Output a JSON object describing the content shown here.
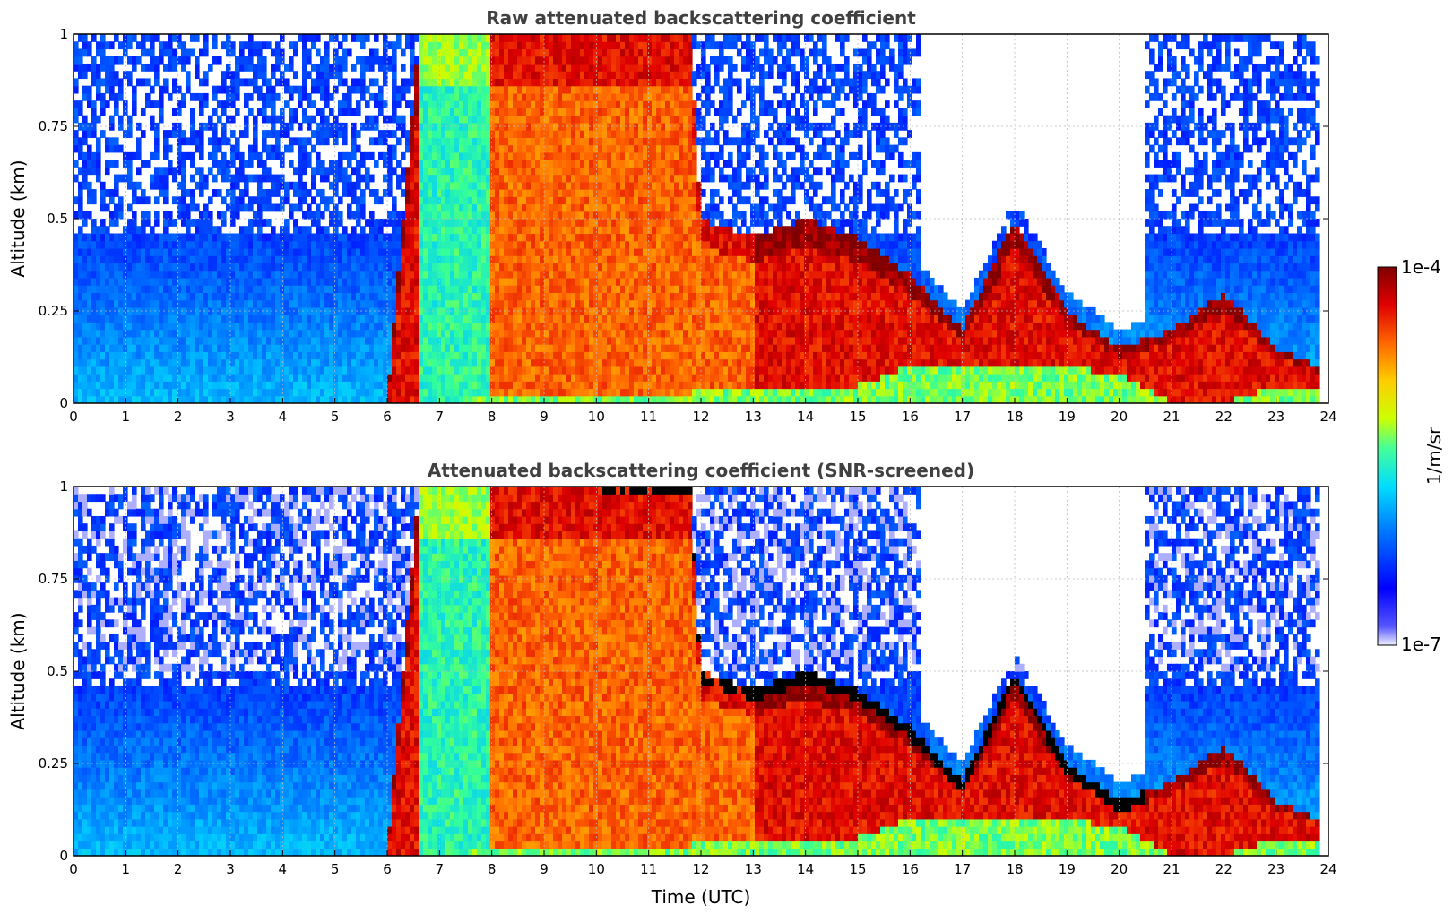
{
  "chart_data": [
    {
      "type": "heatmap",
      "title": "Raw attenuated backscattering coefficient",
      "xlabel": "",
      "ylabel": "Altitude (km)",
      "xlim": [
        0,
        24
      ],
      "ylim": [
        0,
        1
      ],
      "xticks": [
        "0",
        "1",
        "2",
        "3",
        "4",
        "5",
        "6",
        "7",
        "8",
        "9",
        "10",
        "11",
        "12",
        "13",
        "14",
        "15",
        "16",
        "17",
        "18",
        "19",
        "20",
        "21",
        "22",
        "23",
        "24"
      ],
      "yticks": [
        "0",
        "0.25",
        "0.5",
        "0.75",
        "1"
      ],
      "grid": true,
      "screened": false,
      "time_hours": [
        0,
        1,
        2,
        3,
        4,
        5,
        6,
        6.6,
        7,
        8,
        9,
        10,
        11,
        11.8,
        12,
        13,
        14,
        15,
        16,
        17,
        18,
        19,
        20,
        21,
        22,
        23,
        23.8
      ],
      "cloud_top_km": [
        0,
        0,
        0,
        0,
        0,
        0,
        0,
        1,
        1,
        1,
        1,
        1,
        1,
        1,
        0.5,
        0.45,
        0.5,
        0.45,
        0.35,
        0.2,
        0.5,
        0.25,
        0.15,
        0.2,
        0.3,
        0.15,
        0.1
      ],
      "cloud_base_km": [
        0,
        0,
        0,
        0,
        0,
        0,
        0,
        0,
        0,
        0.02,
        0.02,
        0.02,
        0.02,
        0.02,
        0.05,
        0.05,
        0.05,
        0.05,
        0.1,
        0.1,
        0.1,
        0.1,
        0.08,
        0,
        0,
        0.05,
        0.05
      ]
    },
    {
      "type": "heatmap",
      "title": "Attenuated backscattering coefficient (SNR-screened)",
      "xlabel": "Time (UTC)",
      "ylabel": "Altitude (km)",
      "xlim": [
        0,
        24
      ],
      "ylim": [
        0,
        1
      ],
      "xticks": [
        "0",
        "1",
        "2",
        "3",
        "4",
        "5",
        "6",
        "7",
        "8",
        "9",
        "10",
        "11",
        "12",
        "13",
        "14",
        "15",
        "16",
        "17",
        "18",
        "19",
        "20",
        "21",
        "22",
        "23",
        "24"
      ],
      "yticks": [
        "0",
        "0.25",
        "0.5",
        "0.75",
        "1"
      ],
      "grid": true,
      "screened": true,
      "time_hours": [
        0,
        1,
        2,
        3,
        4,
        5,
        6,
        6.6,
        7,
        8,
        9,
        10,
        11,
        11.8,
        12,
        13,
        14,
        15,
        16,
        17,
        18,
        19,
        20,
        21,
        22,
        23,
        23.8
      ],
      "cloud_top_km": [
        0,
        0,
        0,
        0,
        0,
        0,
        0,
        1,
        1,
        1,
        1,
        1,
        1,
        1,
        0.5,
        0.45,
        0.5,
        0.45,
        0.35,
        0.2,
        0.5,
        0.25,
        0.15,
        0.2,
        0.3,
        0.15,
        0.1
      ],
      "cloud_base_km": [
        0,
        0,
        0,
        0,
        0,
        0,
        0,
        0,
        0,
        0.02,
        0.02,
        0.02,
        0.02,
        0.02,
        0.05,
        0.05,
        0.05,
        0.05,
        0.1,
        0.1,
        0.1,
        0.1,
        0.08,
        0,
        0,
        0.05,
        0.05
      ]
    }
  ],
  "colorbar": {
    "label": "1/m/sr",
    "min_label": "1e-7",
    "max_label": "1e-4",
    "scale": "log",
    "colormap": "jet",
    "colors": [
      "#eeeeff",
      "#0000ff",
      "#0066ff",
      "#00ccff",
      "#33ff99",
      "#ccff00",
      "#ffcc00",
      "#ff6600",
      "#e00000",
      "#800000"
    ]
  }
}
